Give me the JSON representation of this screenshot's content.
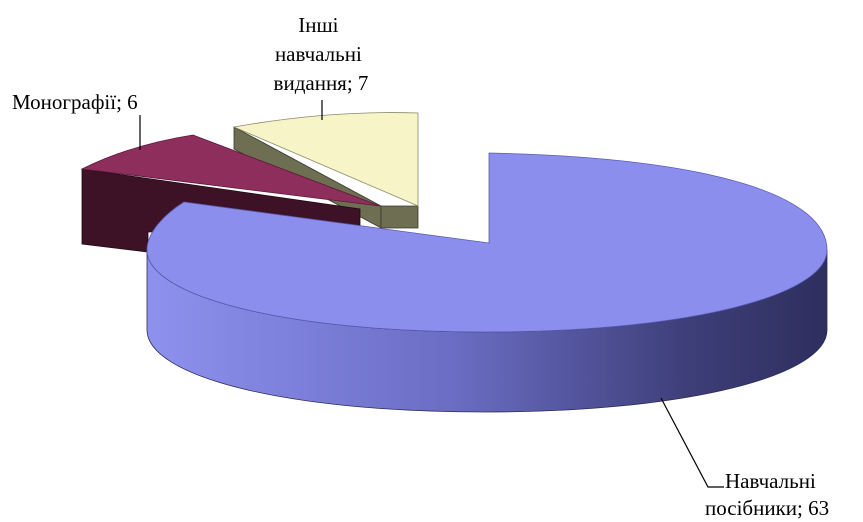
{
  "chart_data": {
    "type": "pie",
    "three_d": true,
    "exploded": true,
    "title": "",
    "slices": [
      {
        "name": "Навчальні посібники",
        "value": 63,
        "label_lines": [
          "Навчальні",
          "посібники; 63"
        ],
        "color": "#8C8EEE"
      },
      {
        "name": "Монографії",
        "value": 6,
        "label_lines": [
          "Монографії; 6"
        ],
        "color": "#8E2E5C"
      },
      {
        "name": "Інші навчальні видання",
        "value": 7,
        "label_lines": [
          "Інші",
          "навчальні",
          "видання; 7"
        ],
        "color": "#F7F4C8"
      }
    ],
    "legend": "none",
    "data_labels": "category-and-value"
  }
}
